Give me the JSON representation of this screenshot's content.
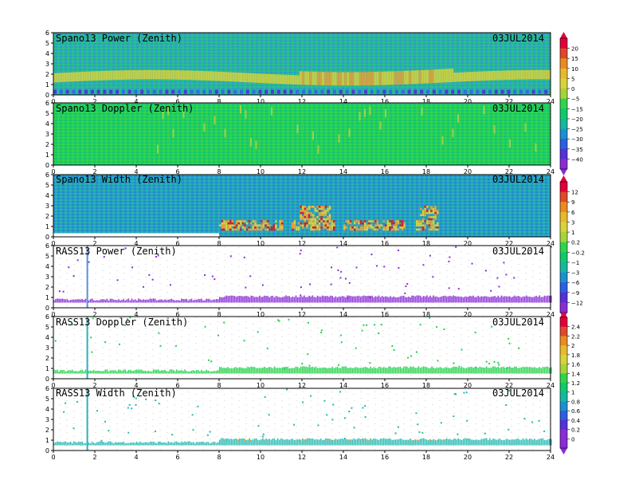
{
  "figure": {
    "date": "03JUL2014"
  },
  "colors": {
    "background_teal": "#2aa8b0",
    "background_green": "#1fd15a",
    "background_blue": "#1c74cf",
    "echo_yellow": "#d8d23a",
    "echo_orange": "#e7a238",
    "echo_red": "#d01f2b",
    "echo_purple": "#8a2bd6",
    "axis": "#000000"
  },
  "chart_data": [
    {
      "type": "heatmap",
      "title": "Spano13 Power (Zenith)",
      "date": "03JUL2014",
      "x_ticks": [
        0,
        2,
        4,
        6,
        8,
        10,
        12,
        14,
        16,
        18,
        20,
        22,
        24
      ],
      "y_ticks": [
        0,
        1,
        2,
        3,
        4,
        5,
        6
      ],
      "xlim": [
        0,
        24
      ],
      "ylim": [
        0,
        6
      ],
      "colorbar": "power",
      "description_band": "enhanced power layer near 1.5-2.5 km, strongest 12-19"
    },
    {
      "type": "heatmap",
      "title": "Spano13 Doppler (Zenith)",
      "date": "03JUL2014",
      "x_ticks": [
        0,
        2,
        4,
        6,
        8,
        10,
        12,
        14,
        16,
        18,
        20,
        22,
        24
      ],
      "y_ticks": [
        0,
        1,
        2,
        3,
        4,
        5,
        6
      ],
      "xlim": [
        0,
        24
      ],
      "ylim": [
        0,
        6
      ],
      "colorbar": "power"
    },
    {
      "type": "heatmap",
      "title": "Spano13 Width (Zenith)",
      "date": "03JUL2014",
      "x_ticks": [
        0,
        2,
        4,
        6,
        8,
        10,
        12,
        14,
        16,
        18,
        20,
        22,
        24
      ],
      "y_ticks": [
        0,
        1,
        2,
        3,
        4,
        5,
        6
      ],
      "xlim": [
        0,
        24
      ],
      "ylim": [
        0,
        6
      ],
      "colorbar": "doppler"
    },
    {
      "type": "heatmap",
      "title": "RASS13 Power (Zenith)",
      "date": "03JUL2014",
      "x_ticks": [
        0,
        2,
        4,
        6,
        8,
        10,
        12,
        14,
        16,
        18,
        20,
        22,
        24
      ],
      "y_ticks": [
        0,
        1,
        2,
        3,
        4,
        5,
        6
      ],
      "xlim": [
        0,
        24
      ],
      "ylim": [
        0,
        6
      ],
      "colorbar": "doppler"
    },
    {
      "type": "heatmap",
      "title": "RASS13 Doppler (Zenith)",
      "date": "03JUL2014",
      "x_ticks": [
        0,
        2,
        4,
        6,
        8,
        10,
        12,
        14,
        16,
        18,
        20,
        22,
        24
      ],
      "y_ticks": [
        0,
        1,
        2,
        3,
        4,
        5,
        6
      ],
      "xlim": [
        0,
        24
      ],
      "ylim": [
        0,
        6
      ],
      "colorbar": "width"
    },
    {
      "type": "heatmap",
      "title": "RASS13 Width (Zenith)",
      "date": "03JUL2014",
      "x_ticks": [
        0,
        2,
        4,
        6,
        8,
        10,
        12,
        14,
        16,
        18,
        20,
        22,
        24
      ],
      "y_ticks": [
        0,
        1,
        2,
        3,
        4,
        5,
        6
      ],
      "xlim": [
        0,
        24
      ],
      "ylim": [
        0,
        6
      ],
      "colorbar": "width"
    }
  ],
  "colorbars": [
    {
      "id": "power",
      "labels": [
        "20",
        "15",
        "10",
        "5",
        "0",
        "−5",
        "−15",
        "−20",
        "−25",
        "−30",
        "−35",
        "−40"
      ],
      "colors": [
        "#e2003a",
        "#e0482c",
        "#ea8a22",
        "#e7b92c",
        "#d9d23a",
        "#a8d23a",
        "#2fd44e",
        "#12c86a",
        "#17b6a0",
        "#1e8fce",
        "#2c5fe0",
        "#5630d8",
        "#8a2bd6"
      ]
    },
    {
      "id": "doppler",
      "labels": [
        "12",
        "9",
        "6",
        "3",
        "1",
        "0.2",
        "−0.2",
        "−1",
        "−3",
        "−6",
        "−9",
        "−12"
      ],
      "colors": [
        "#e2003a",
        "#e0482c",
        "#ea8a22",
        "#e7b92c",
        "#d9d23a",
        "#a8d23a",
        "#2fd44e",
        "#12c86a",
        "#17b6a0",
        "#1e8fce",
        "#2c5fe0",
        "#5630d8",
        "#8a2bd6"
      ]
    },
    {
      "id": "width",
      "labels": [
        "2.4",
        "2.2",
        "2",
        "1.8",
        "1.6",
        "1.4",
        "1.2",
        "1",
        "0.8",
        "0.6",
        "0.4",
        "0.2",
        "0"
      ],
      "colors": [
        "#e2003a",
        "#e0482c",
        "#ea8a22",
        "#e7b92c",
        "#d9d23a",
        "#a8d23a",
        "#2fd44e",
        "#12c86a",
        "#17b6a0",
        "#1e8fce",
        "#2c5fe0",
        "#5630d8",
        "#8a2bd6",
        "#8a2bd6"
      ]
    }
  ]
}
